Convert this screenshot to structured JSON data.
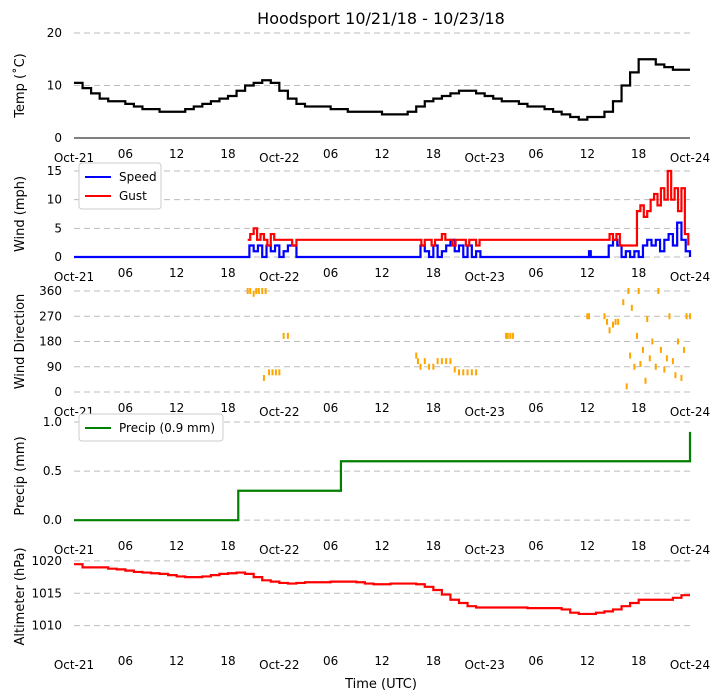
{
  "title": "Hoodsport 10/21/18 - 10/23/18",
  "xlabel": "Time (UTC)",
  "x_tick_labels": [
    "Oct-21",
    "06",
    "12",
    "18",
    "Oct-22",
    "06",
    "12",
    "18",
    "Oct-23",
    "06",
    "12",
    "18",
    "Oct-24"
  ],
  "chart_data": [
    {
      "type": "line",
      "ylabel": "Temp (˚C)",
      "ylim": [
        0,
        20
      ],
      "yticks": [
        0,
        10,
        20
      ],
      "grid": true,
      "x_unit": "hours since Oct-21 00 UTC",
      "series": [
        {
          "color": "#000000",
          "x": [
            0,
            1,
            2,
            3,
            4,
            5,
            6,
            7,
            8,
            9,
            10,
            11,
            12,
            13,
            14,
            15,
            16,
            17,
            18,
            19,
            20,
            21,
            22,
            23,
            24,
            25,
            26,
            27,
            28,
            29,
            30,
            31,
            32,
            33,
            34,
            35,
            36,
            37,
            38,
            39,
            40,
            41,
            42,
            43,
            44,
            45,
            46,
            47,
            48,
            49,
            50,
            51,
            52,
            53,
            54,
            55,
            56,
            57,
            58,
            59,
            60,
            61,
            62,
            63,
            64,
            65,
            66,
            67,
            68,
            69,
            70,
            71,
            72
          ],
          "y": [
            10.5,
            9.5,
            8.5,
            7.5,
            7,
            7,
            6.5,
            6,
            5.5,
            5.5,
            5,
            5,
            5,
            5.5,
            6,
            6.5,
            7,
            7.5,
            8,
            9,
            10,
            10.5,
            11,
            10.5,
            9,
            7.5,
            6.5,
            6,
            6,
            6,
            5.5,
            5.5,
            5,
            5,
            5,
            5,
            4.5,
            4.5,
            4.5,
            5,
            6,
            7,
            7.5,
            8,
            8.5,
            9,
            9,
            8.5,
            8,
            7.5,
            7,
            7,
            6.5,
            6,
            6,
            5.5,
            5,
            4.5,
            4,
            3.5,
            4,
            4,
            5,
            7,
            10,
            12.5,
            15,
            15,
            14,
            13.5,
            13,
            13,
            13
          ]
        }
      ]
    },
    {
      "type": "line",
      "ylabel": "Wind (mph)",
      "ylim": [
        0,
        15
      ],
      "yticks": [
        0,
        5,
        10,
        15
      ],
      "grid": true,
      "legend": "top-left",
      "series": [
        {
          "name": "Speed",
          "color": "#0000ff",
          "x": [
            0,
            20.3,
            20.5,
            21,
            21.5,
            22,
            22.5,
            23,
            23.5,
            24,
            24.5,
            25,
            25.5,
            26,
            26.5,
            27,
            40,
            40.5,
            41,
            41.5,
            42,
            42.5,
            43,
            43.5,
            44,
            44.5,
            45,
            45.5,
            46,
            46.5,
            47,
            47.5,
            60,
            60.2,
            60.4,
            62,
            62.5,
            63,
            63.5,
            64,
            64.5,
            65,
            65.5,
            66,
            66.5,
            67,
            67.5,
            68,
            68.5,
            69,
            69.5,
            70,
            70.5,
            71,
            71.5,
            72
          ],
          "y": [
            0,
            0,
            2,
            1,
            2,
            0,
            2,
            1,
            2,
            0,
            1,
            2,
            2,
            0,
            0,
            0,
            0,
            2,
            1,
            0,
            2,
            0,
            1,
            2,
            3,
            1,
            2,
            0,
            2,
            0,
            1,
            0,
            0,
            1,
            0,
            0,
            2,
            3,
            2,
            0,
            1,
            0,
            1,
            0,
            2,
            3,
            2,
            3,
            1,
            3,
            4,
            2,
            6,
            3,
            1,
            0
          ]
        },
        {
          "name": "Gust",
          "color": "#ff0000",
          "x": [
            20.3,
            20.6,
            21,
            21.4,
            21.8,
            22.2,
            22.6,
            23,
            23.4,
            23.8,
            24.2,
            24.6,
            25,
            25.5,
            26,
            26.3,
            40.2,
            40.6,
            41,
            41.4,
            41.8,
            42.2,
            42.6,
            43,
            43.4,
            43.8,
            44.2,
            44.6,
            45,
            45.4,
            45.8,
            46.2,
            46.6,
            47,
            47.4,
            62.2,
            62.6,
            63,
            63.4,
            63.8,
            64.2,
            64.6,
            65,
            65.4,
            65.8,
            66.2,
            66.6,
            67,
            67.4,
            67.8,
            68.2,
            68.6,
            69,
            69.4,
            69.8,
            70.2,
            70.6,
            71,
            71.4,
            71.8
          ],
          "y": [
            3,
            4,
            5,
            3,
            4,
            3,
            2,
            4,
            3,
            3,
            3,
            3,
            3,
            2,
            3,
            3,
            3,
            2,
            3,
            3,
            2,
            3,
            3,
            4,
            3,
            3,
            2,
            3,
            3,
            3,
            2,
            3,
            3,
            2,
            3,
            3,
            4,
            3,
            4,
            2,
            2,
            2,
            2,
            2,
            8,
            9,
            7,
            8,
            10,
            11,
            9,
            12,
            10,
            15,
            10,
            12,
            8,
            12,
            4,
            2
          ]
        }
      ]
    },
    {
      "type": "scatter",
      "ylabel": "Wind Direction",
      "ylim": [
        0,
        360
      ],
      "yticks": [
        0,
        90,
        180,
        270,
        360
      ],
      "grid": true,
      "series": [
        {
          "color": "#ffa500",
          "x": [
            20.3,
            20.6,
            21,
            21.3,
            21.6,
            22,
            22.2,
            22.4,
            22.8,
            23.2,
            23.6,
            24,
            24.5,
            25,
            40,
            40.2,
            40.5,
            41,
            41.5,
            42,
            42.5,
            43,
            43.5,
            44,
            44.5,
            45,
            45.5,
            46,
            46.5,
            47,
            50.5,
            50.7,
            51,
            51.3,
            60,
            60.2,
            62,
            62.3,
            62.6,
            63,
            63.3,
            63.6,
            64.2,
            64.6,
            64.8,
            65,
            65.2,
            65.5,
            65.8,
            66,
            66.2,
            66.5,
            66.8,
            67,
            67.3,
            67.6,
            68,
            68.3,
            68.6,
            69,
            69.3,
            69.6,
            70,
            70.3,
            70.6,
            71,
            71.3,
            71.6,
            72
          ],
          "y": [
            360,
            360,
            350,
            360,
            360,
            360,
            50,
            360,
            70,
            70,
            70,
            70,
            200,
            200,
            130,
            110,
            90,
            110,
            90,
            90,
            110,
            110,
            110,
            110,
            80,
            70,
            70,
            70,
            70,
            70,
            200,
            200,
            200,
            200,
            270,
            270,
            270,
            250,
            220,
            240,
            250,
            250,
            320,
            20,
            360,
            130,
            300,
            90,
            200,
            360,
            100,
            150,
            40,
            260,
            120,
            180,
            90,
            360,
            150,
            80,
            120,
            270,
            110,
            60,
            180,
            50,
            150,
            270,
            270
          ]
        }
      ]
    },
    {
      "type": "line",
      "ylabel": "Precip (mm)",
      "ylim": [
        -0.1,
        1.0
      ],
      "yticks": [
        0.0,
        0.5,
        1.0
      ],
      "grid": true,
      "legend": "top-left",
      "series": [
        {
          "name": "Precip (0.9 mm)",
          "color": "#008000",
          "x": [
            0,
            19,
            19.2,
            31,
            31.2,
            71.8,
            72
          ],
          "y": [
            0,
            0,
            0.3,
            0.3,
            0.6,
            0.6,
            0.9
          ]
        }
      ]
    },
    {
      "type": "line",
      "ylabel": "Altimeter (hPa)",
      "ylim": [
        1007,
        1022
      ],
      "yticks": [
        1010,
        1015,
        1020
      ],
      "grid": true,
      "series": [
        {
          "color": "#ff0000",
          "x": [
            0,
            1,
            2,
            3,
            4,
            5,
            6,
            7,
            8,
            9,
            10,
            11,
            12,
            13,
            14,
            15,
            16,
            17,
            18,
            19,
            20,
            21,
            22,
            23,
            24,
            25,
            26,
            27,
            28,
            29,
            30,
            31,
            32,
            33,
            34,
            35,
            36,
            37,
            38,
            39,
            40,
            41,
            42,
            43,
            44,
            45,
            46,
            47,
            48,
            49,
            50,
            51,
            52,
            53,
            54,
            55,
            56,
            57,
            58,
            59,
            60,
            61,
            62,
            63,
            64,
            65,
            66,
            67,
            68,
            69,
            70,
            71,
            72
          ],
          "y": [
            1019.5,
            1019,
            1019,
            1019,
            1018.8,
            1018.7,
            1018.5,
            1018.3,
            1018.2,
            1018.1,
            1018,
            1017.8,
            1017.6,
            1017.5,
            1017.5,
            1017.6,
            1017.8,
            1018,
            1018.1,
            1018.2,
            1018,
            1017.5,
            1017,
            1016.8,
            1016.6,
            1016.5,
            1016.6,
            1016.7,
            1016.7,
            1016.7,
            1016.8,
            1016.8,
            1016.8,
            1016.7,
            1016.5,
            1016.4,
            1016.4,
            1016.5,
            1016.5,
            1016.5,
            1016.4,
            1016,
            1015.5,
            1014.8,
            1014,
            1013.5,
            1013,
            1012.8,
            1012.8,
            1012.8,
            1012.8,
            1012.8,
            1012.8,
            1012.7,
            1012.7,
            1012.7,
            1012.7,
            1012.5,
            1012,
            1011.8,
            1011.8,
            1012,
            1012.2,
            1012.5,
            1013,
            1013.5,
            1014,
            1014,
            1014,
            1014,
            1014.3,
            1014.7,
            1014.7
          ]
        }
      ]
    }
  ]
}
